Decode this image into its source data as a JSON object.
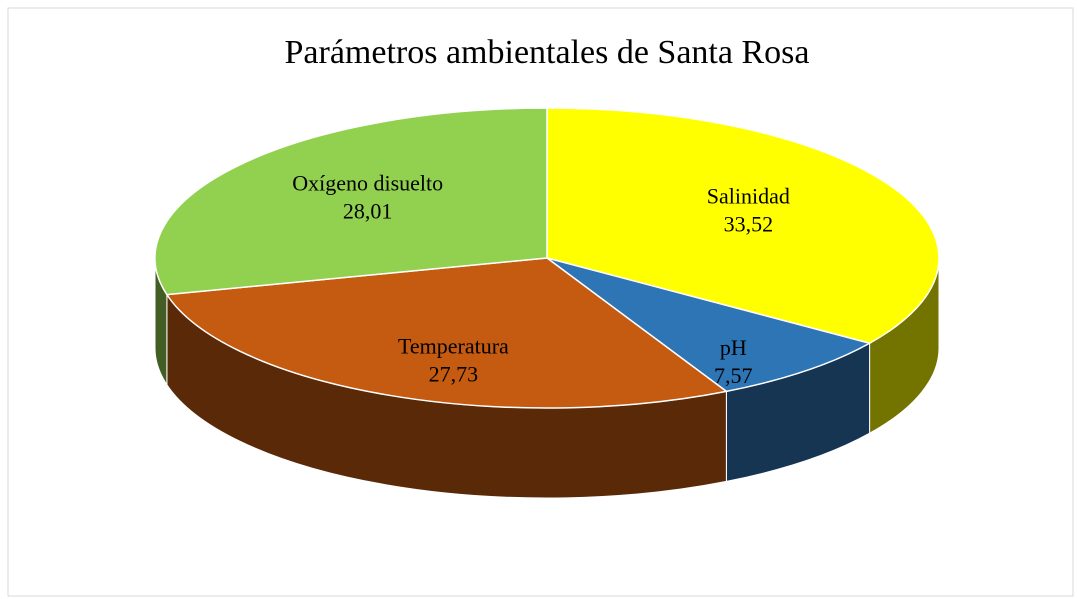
{
  "chart_data": {
    "type": "pie",
    "title": "Parámetros ambientales de Santa Rosa",
    "categories": [
      "Salinidad",
      "pH",
      "Temperatura",
      "Oxígeno disuelto"
    ],
    "values": [
      33.52,
      7.57,
      27.73,
      28.01
    ],
    "value_labels": [
      "33,52",
      "7,57",
      "27,73",
      "28,01"
    ],
    "colors": [
      "#ffff00",
      "#2e75b6",
      "#c55a11",
      "#92d050"
    ],
    "three_d": true
  }
}
